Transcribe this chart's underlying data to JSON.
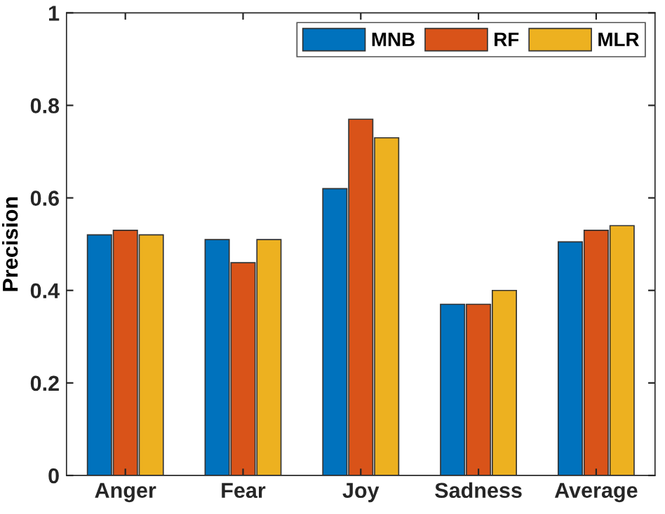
{
  "chart_data": {
    "type": "bar",
    "ylabel": "Precision",
    "categories": [
      "Anger",
      "Fear",
      "Joy",
      "Sadness",
      "Average"
    ],
    "series": [
      {
        "name": "MNB",
        "color": "#0072bd",
        "values": [
          0.52,
          0.51,
          0.62,
          0.37,
          0.505
        ]
      },
      {
        "name": "RF",
        "color": "#d95319",
        "values": [
          0.53,
          0.46,
          0.77,
          0.37,
          0.53
        ]
      },
      {
        "name": "MLR",
        "color": "#edb120",
        "values": [
          0.52,
          0.51,
          0.73,
          0.4,
          0.54
        ]
      }
    ],
    "ylim": [
      0,
      1
    ],
    "yticks": [
      0,
      0.2,
      0.4,
      0.6,
      0.8,
      1
    ],
    "grid": false,
    "legend": "top right"
  }
}
